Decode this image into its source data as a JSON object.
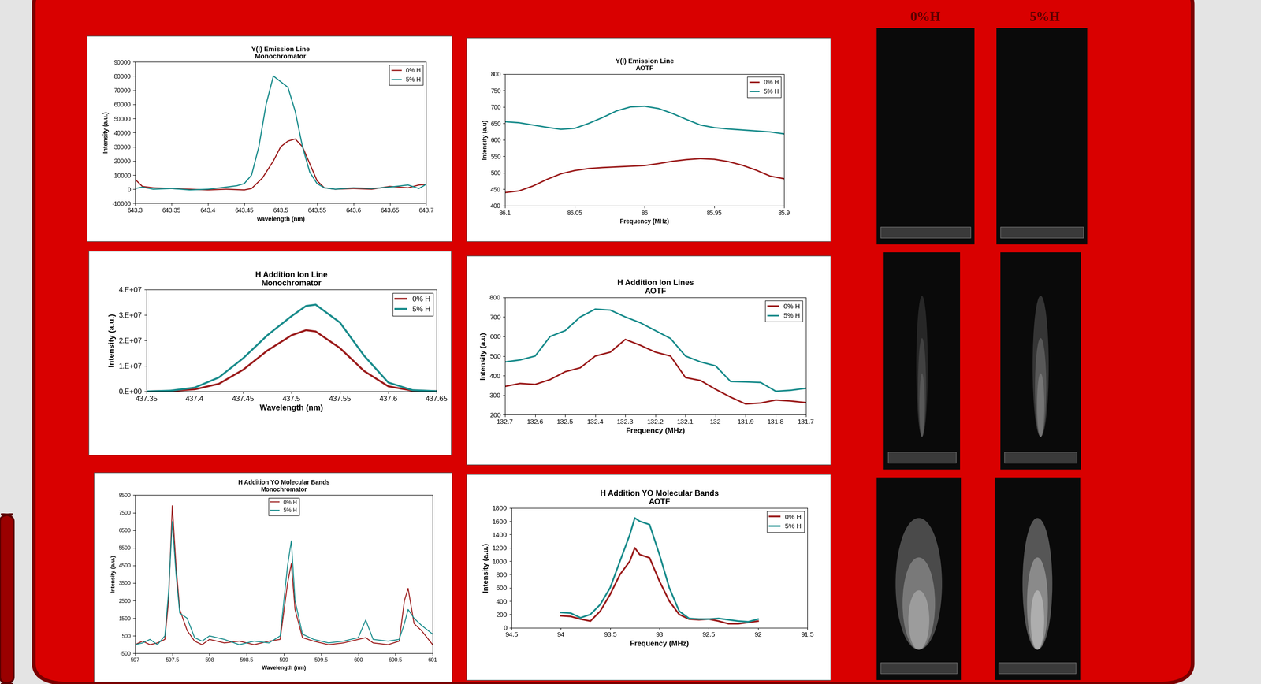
{
  "chart_data": [
    {
      "type": "line",
      "title": "Y(I) Emission Line\nMonochromator",
      "x_label": "wavelength (nm)",
      "y_label": "Intensity (a.u.)",
      "xlim": [
        643.3,
        643.7
      ],
      "xticks": [
        643.3,
        643.35,
        643.4,
        643.45,
        643.5,
        643.55,
        643.6,
        643.65,
        643.7
      ],
      "ylim": [
        -10000,
        90000
      ],
      "yticks": [
        -10000,
        0,
        10000,
        20000,
        30000,
        40000,
        50000,
        60000,
        70000,
        80000,
        90000
      ],
      "legend": "upper right",
      "series": [
        {
          "name": "0% H",
          "color": "#9b1c1c",
          "x": [
            643.3,
            643.31,
            643.325,
            643.35,
            643.375,
            643.4,
            643.425,
            643.45,
            643.46,
            643.475,
            643.49,
            643.5,
            643.51,
            643.52,
            643.53,
            643.54,
            643.55,
            643.56,
            643.575,
            643.6,
            643.625,
            643.65,
            643.675,
            643.69,
            643.7
          ],
          "values": [
            7000,
            2000,
            1000,
            500,
            0,
            -500,
            0,
            -500,
            500,
            8000,
            20000,
            30000,
            34000,
            35500,
            30000,
            18000,
            6000,
            1000,
            0,
            500,
            0,
            2000,
            1000,
            3000,
            3500
          ]
        },
        {
          "name": "5% H",
          "color": "#1a8c8c",
          "x": [
            643.3,
            643.31,
            643.325,
            643.35,
            643.375,
            643.4,
            643.425,
            643.44,
            643.45,
            643.46,
            643.47,
            643.48,
            643.49,
            643.5,
            643.51,
            643.52,
            643.53,
            643.54,
            643.55,
            643.56,
            643.575,
            643.6,
            643.625,
            643.65,
            643.675,
            643.69,
            643.7
          ],
          "values": [
            500,
            1500,
            0,
            500,
            -500,
            0,
            1500,
            2500,
            4000,
            10000,
            30000,
            60000,
            80000,
            76000,
            72000,
            55000,
            30000,
            12000,
            4000,
            1000,
            0,
            1000,
            500,
            1500,
            3000,
            500,
            3500
          ]
        }
      ]
    },
    {
      "type": "line",
      "title": "Y(I) Emission Line\nAOTF",
      "x_label": "Frequency (MHz)",
      "y_label": "Intensity (a.u)",
      "xlim": [
        86.1,
        85.9
      ],
      "xticks": [
        86.1,
        86.05,
        86,
        85.95,
        85.9
      ],
      "ylim": [
        400,
        800
      ],
      "yticks": [
        400,
        450,
        500,
        550,
        600,
        650,
        700,
        750,
        800
      ],
      "legend": "upper right",
      "series": [
        {
          "name": "0% H",
          "color": "#9b1c1c",
          "x": [
            86.1,
            86.09,
            86.08,
            86.07,
            86.06,
            86.05,
            86.04,
            86.03,
            86.02,
            86.01,
            86.0,
            85.99,
            85.98,
            85.97,
            85.96,
            85.95,
            85.94,
            85.93,
            85.92,
            85.91,
            85.9
          ],
          "values": [
            440,
            445,
            460,
            480,
            497,
            507,
            513,
            516,
            518,
            520,
            522,
            528,
            535,
            540,
            543,
            541,
            534,
            523,
            508,
            490,
            482
          ]
        },
        {
          "name": "5% H",
          "color": "#1a8c8c",
          "x": [
            86.1,
            86.09,
            86.08,
            86.07,
            86.06,
            86.05,
            86.04,
            86.03,
            86.02,
            86.01,
            86.0,
            85.99,
            85.98,
            85.97,
            85.96,
            85.95,
            85.94,
            85.93,
            85.92,
            85.91,
            85.9
          ],
          "values": [
            655,
            652,
            645,
            638,
            632,
            635,
            650,
            668,
            688,
            700,
            702,
            695,
            680,
            662,
            645,
            637,
            633,
            630,
            627,
            624,
            618
          ]
        }
      ]
    },
    {
      "type": "line",
      "title": "H Addition Ion Line\nMonochromator",
      "x_label": "Wavelength (nm)",
      "y_label": "Intensity (a.u.)",
      "xlim": [
        437.35,
        437.65
      ],
      "xticks": [
        437.35,
        437.4,
        437.45,
        437.5,
        437.55,
        437.6,
        437.65
      ],
      "ylim": [
        0,
        40000000
      ],
      "yticks": [
        {
          "value": 0,
          "label": "0.E+00"
        },
        {
          "value": 10000000,
          "label": "1.E+07"
        },
        {
          "value": 20000000,
          "label": "2.E+07"
        },
        {
          "value": 30000000,
          "label": "3.E+07"
        },
        {
          "value": 40000000,
          "label": "4.E+07"
        }
      ],
      "legend": "upper right",
      "series": [
        {
          "name": "0% H",
          "color": "#9b1c1c",
          "x": [
            437.35,
            437.375,
            437.4,
            437.425,
            437.45,
            437.475,
            437.5,
            437.515,
            437.525,
            437.55,
            437.575,
            437.6,
            437.625,
            437.65
          ],
          "values": [
            0,
            200000,
            800000,
            3000000,
            8500000,
            16000000,
            22000000,
            24000000,
            23500000,
            17000000,
            8000000,
            2000000,
            300000,
            100000
          ]
        },
        {
          "name": "5% H",
          "color": "#1a8c8c",
          "x": [
            437.35,
            437.375,
            437.4,
            437.425,
            437.45,
            437.475,
            437.5,
            437.515,
            437.525,
            437.55,
            437.575,
            437.6,
            437.625,
            437.65
          ],
          "values": [
            0,
            300000,
            1500000,
            5500000,
            13000000,
            22000000,
            29500000,
            33500000,
            34000000,
            27000000,
            14000000,
            3500000,
            500000,
            100000
          ]
        }
      ]
    },
    {
      "type": "line",
      "title": "H Addition Ion Lines\nAOTF",
      "x_label": "Frequency (MHz)",
      "y_label": "Intensity (a.u)",
      "xlim": [
        132.7,
        131.7
      ],
      "xticks": [
        132.7,
        132.6,
        132.5,
        132.4,
        132.3,
        132.2,
        132.1,
        132,
        131.9,
        131.8,
        131.7
      ],
      "ylim": [
        200,
        800
      ],
      "yticks": [
        200,
        300,
        400,
        500,
        600,
        700,
        800
      ],
      "legend": "upper right",
      "series": [
        {
          "name": "0% H",
          "color": "#9b1c1c",
          "x": [
            132.7,
            132.65,
            132.6,
            132.55,
            132.5,
            132.45,
            132.4,
            132.35,
            132.3,
            132.25,
            132.2,
            132.15,
            132.1,
            132.05,
            132.0,
            131.95,
            131.9,
            131.85,
            131.8,
            131.75,
            131.7
          ],
          "values": [
            345,
            360,
            355,
            380,
            420,
            440,
            500,
            520,
            585,
            555,
            520,
            500,
            390,
            375,
            330,
            290,
            255,
            260,
            275,
            270,
            262
          ]
        },
        {
          "name": "5% H",
          "color": "#1a8c8c",
          "x": [
            132.7,
            132.65,
            132.6,
            132.55,
            132.5,
            132.45,
            132.4,
            132.35,
            132.3,
            132.25,
            132.2,
            132.15,
            132.1,
            132.05,
            132.0,
            131.95,
            131.9,
            131.85,
            131.8,
            131.75,
            131.7
          ],
          "values": [
            470,
            480,
            500,
            600,
            630,
            700,
            740,
            735,
            700,
            670,
            630,
            590,
            500,
            470,
            450,
            370,
            368,
            365,
            320,
            325,
            335
          ]
        }
      ]
    },
    {
      "type": "line",
      "title": "H Addition YO Molecular Bands\nMonochromator",
      "x_label": "Wavelength (nm)",
      "y_label": "Intensity (a.u.)",
      "xlim": [
        597,
        601
      ],
      "xticks": [
        597,
        597.5,
        598,
        598.5,
        599,
        599.5,
        600,
        600.5,
        601
      ],
      "ylim": [
        -500,
        8500
      ],
      "yticks": [
        -500,
        500,
        1500,
        2500,
        3500,
        4500,
        5500,
        6500,
        7500,
        8500
      ],
      "legend": "upper center",
      "series": [
        {
          "name": "0% H",
          "color": "#9b1c1c",
          "x": [
            597.0,
            597.1,
            597.2,
            597.3,
            597.4,
            597.45,
            597.5,
            597.55,
            597.6,
            597.7,
            597.8,
            597.9,
            598.0,
            598.2,
            598.4,
            598.6,
            598.8,
            598.95,
            599.05,
            599.1,
            599.15,
            599.25,
            599.4,
            599.6,
            599.8,
            600.0,
            600.1,
            600.2,
            600.4,
            600.55,
            600.62,
            600.67,
            600.75,
            600.85,
            601.0
          ],
          "values": [
            0,
            200,
            0,
            100,
            300,
            2500,
            7900,
            4500,
            2000,
            800,
            200,
            0,
            300,
            100,
            200,
            0,
            200,
            300,
            3500,
            4600,
            2000,
            400,
            200,
            0,
            100,
            300,
            400,
            100,
            0,
            200,
            2500,
            3200,
            1200,
            800,
            0
          ]
        },
        {
          "name": "5% H",
          "color": "#1a8c8c",
          "x": [
            597.0,
            597.1,
            597.2,
            597.3,
            597.4,
            597.45,
            597.5,
            597.55,
            597.6,
            597.7,
            597.8,
            597.9,
            598.0,
            598.2,
            598.4,
            598.6,
            598.8,
            598.95,
            599.05,
            599.1,
            599.15,
            599.25,
            599.4,
            599.6,
            599.8,
            600.0,
            600.1,
            600.2,
            600.4,
            600.55,
            600.62,
            600.67,
            600.75,
            600.85,
            601.0
          ],
          "values": [
            0,
            100,
            300,
            0,
            500,
            3000,
            7000,
            4000,
            1800,
            1500,
            400,
            200,
            500,
            300,
            0,
            200,
            100,
            500,
            4500,
            5900,
            2500,
            600,
            300,
            100,
            200,
            400,
            1400,
            300,
            200,
            300,
            1200,
            2000,
            1500,
            1100,
            600
          ]
        }
      ]
    },
    {
      "type": "line",
      "title": "H Addition YO Molecular Bands\nAOTF",
      "x_label": "Frequency (MHz)",
      "y_label": "Intensity (a.u.)",
      "xlim": [
        94.5,
        91.5
      ],
      "xticks": [
        94.5,
        94,
        93.5,
        93,
        92.5,
        92,
        91.5
      ],
      "ylim": [
        0,
        1800
      ],
      "yticks": [
        0,
        200,
        400,
        600,
        800,
        1000,
        1200,
        1400,
        1600,
        1800
      ],
      "legend": "upper right",
      "series": [
        {
          "name": "0% H",
          "color": "#9b1c1c",
          "x": [
            94.0,
            93.9,
            93.8,
            93.7,
            93.6,
            93.5,
            93.4,
            93.3,
            93.25,
            93.2,
            93.1,
            93.0,
            92.9,
            92.8,
            92.7,
            92.6,
            92.5,
            92.4,
            92.3,
            92.2,
            92.1,
            92.0
          ],
          "values": [
            180,
            170,
            130,
            100,
            250,
            500,
            800,
            1000,
            1200,
            1100,
            1050,
            700,
            400,
            200,
            130,
            120,
            130,
            100,
            60,
            60,
            80,
            100
          ]
        },
        {
          "name": "5% H",
          "color": "#1a8c8c",
          "x": [
            94.0,
            93.9,
            93.8,
            93.7,
            93.6,
            93.5,
            93.4,
            93.3,
            93.25,
            93.2,
            93.1,
            93.0,
            92.9,
            92.8,
            92.7,
            92.6,
            92.5,
            92.4,
            92.3,
            92.2,
            92.1,
            92.0
          ],
          "values": [
            230,
            220,
            150,
            200,
            350,
            600,
            1000,
            1400,
            1650,
            1600,
            1550,
            1100,
            600,
            250,
            140,
            130,
            130,
            140,
            120,
            100,
            90,
            130
          ]
        }
      ]
    }
  ],
  "images": {
    "column_labels": [
      "0%H",
      "5%H"
    ]
  }
}
